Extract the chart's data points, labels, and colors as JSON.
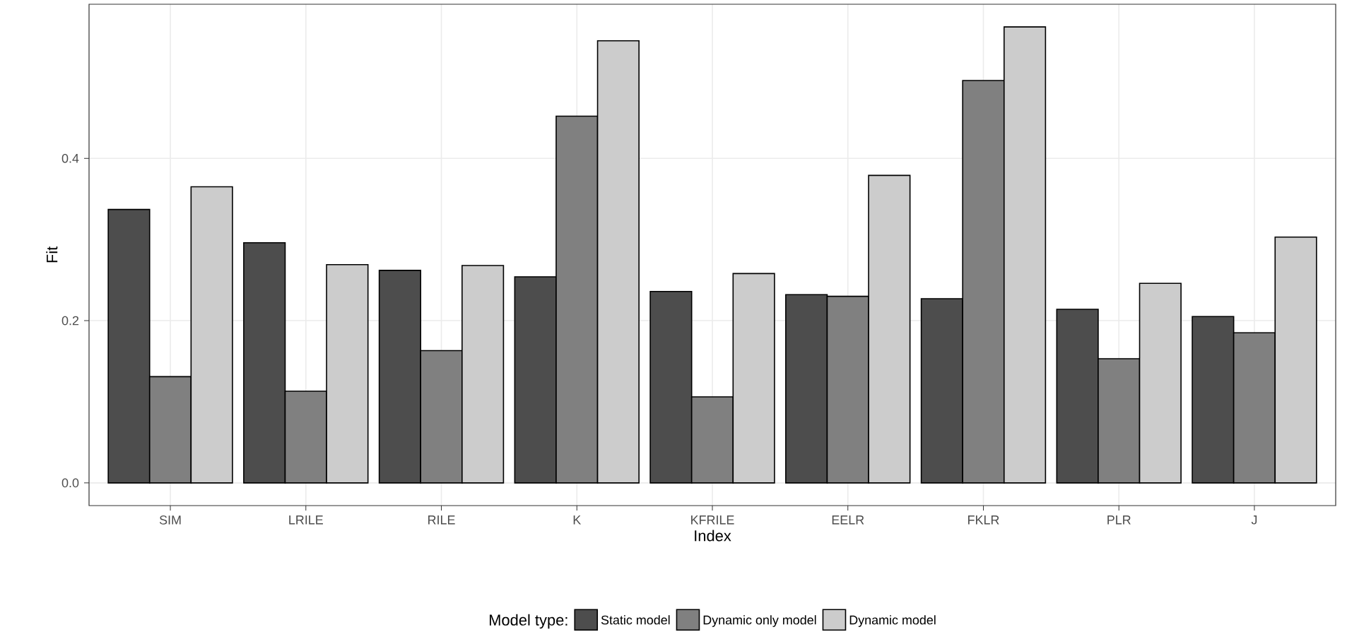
{
  "chart_data": {
    "type": "bar",
    "xlabel": "Index",
    "ylabel": "Fit",
    "legend_title": "Model type:",
    "categories": [
      "SIM",
      "LRILE",
      "RILE",
      "K",
      "KFRILE",
      "EELR",
      "FKLR",
      "PLR",
      "J"
    ],
    "series": [
      {
        "name": "Static model",
        "color": "#4d4d4d",
        "values": [
          0.337,
          0.296,
          0.262,
          0.254,
          0.236,
          0.232,
          0.227,
          0.214,
          0.205
        ]
      },
      {
        "name": "Dynamic only model",
        "color": "#808080",
        "values": [
          0.131,
          0.113,
          0.163,
          0.452,
          0.106,
          0.23,
          0.496,
          0.153,
          0.185
        ]
      },
      {
        "name": "Dynamic model",
        "color": "#cccccc",
        "values": [
          0.365,
          0.269,
          0.268,
          0.545,
          0.258,
          0.379,
          0.562,
          0.246,
          0.303
        ]
      }
    ],
    "ylim": [
      -0.028,
      0.59
    ],
    "yticks": [
      {
        "value": 0,
        "label": "0.0"
      },
      {
        "value": 0.2,
        "label": "0.2"
      },
      {
        "value": 0.4,
        "label": "0.4"
      }
    ],
    "grid": true,
    "legend": "bottom"
  }
}
